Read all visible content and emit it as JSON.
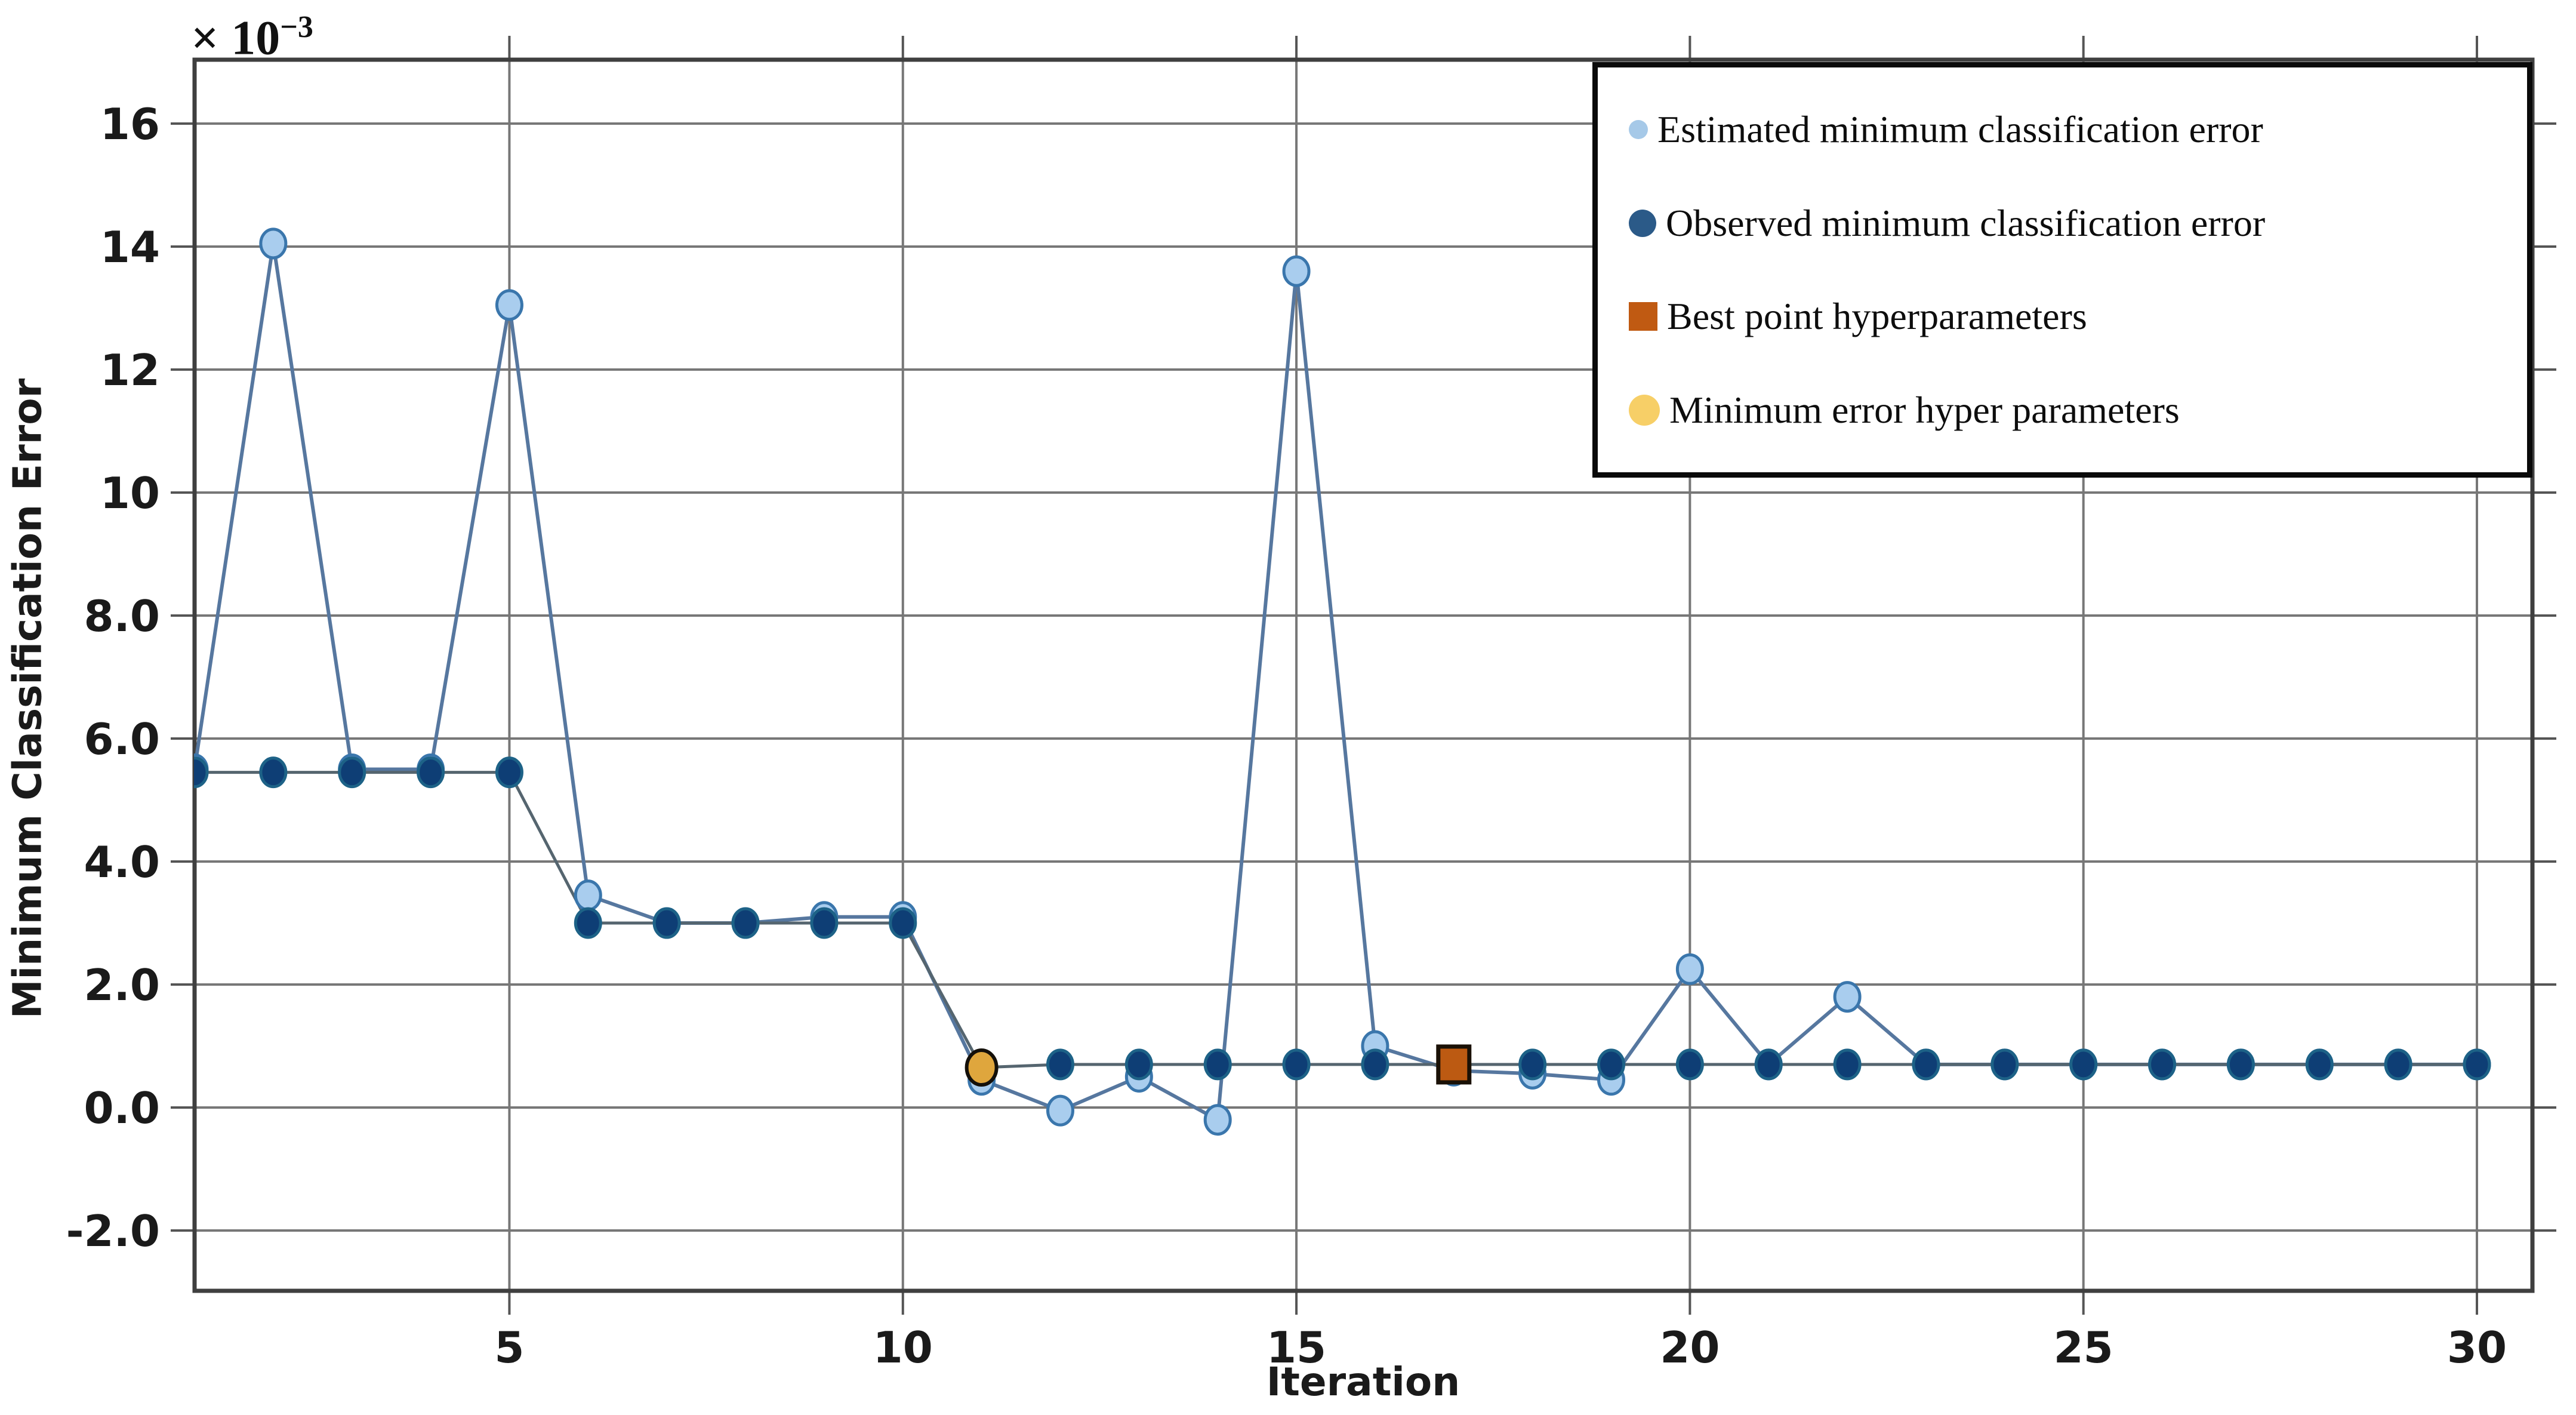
{
  "figure": {
    "background": "#ffffff",
    "frame_color": "#3f3f3f",
    "grid_color": "#777777",
    "tick_color": "#555555"
  },
  "x_axis": {
    "title": "Iteration",
    "tick_labels": [
      "5",
      "10",
      "15",
      "20",
      "25",
      "30"
    ],
    "tick_values": [
      5,
      10,
      15,
      20,
      25,
      30
    ]
  },
  "y_axis": {
    "title": "Minimum Classification Error",
    "multiplier_base": "× 10",
    "multiplier_exponent": "−3",
    "tick_labels": [
      "16",
      "14",
      "12",
      "10",
      "8.0",
      "6.0",
      "4.0",
      "2.0",
      "0.0",
      "-2.0"
    ],
    "tick_values": [
      16,
      14,
      12,
      10,
      8,
      6,
      4,
      2,
      0,
      -2
    ]
  },
  "legend": {
    "items": [
      {
        "label": "Estimated minimum classification error",
        "marker": "circle-small",
        "color": "#A6C9E8"
      },
      {
        "label": "Observed minimum classification error",
        "marker": "circle",
        "color": "#2B5A88"
      },
      {
        "label": "Best point hyperparameters",
        "marker": "square",
        "color": "#C05A12"
      },
      {
        "label": "Minimum error hyper parameters",
        "marker": "circle-large",
        "color": "#F7CF67"
      }
    ]
  },
  "chart_data": {
    "type": "line",
    "title": "",
    "xlabel": "Iteration",
    "ylabel": "Minimum Classification Error",
    "y_unit_multiplier": "1e-3",
    "xlim": [
      1,
      30.7
    ],
    "ylim_e3": [
      -2.98,
      17.04
    ],
    "grid": true,
    "legend_position": "top-right",
    "x": [
      1,
      2,
      3,
      4,
      5,
      6,
      7,
      8,
      9,
      10,
      11,
      12,
      13,
      14,
      15,
      16,
      17,
      18,
      19,
      20,
      21,
      22,
      23,
      24,
      25,
      26,
      27,
      28,
      29,
      30
    ],
    "series": [
      {
        "name": "Estimated minimum classification error",
        "type": "line+markers",
        "line_color": "#56779F",
        "marker_fill": "#A9CDEE",
        "marker_edge": "#3A76AC",
        "values_e3": [
          5.5,
          14.05,
          5.5,
          5.5,
          13.05,
          3.45,
          3.0,
          3.0,
          3.1,
          3.1,
          0.45,
          -0.05,
          0.5,
          -0.2,
          13.6,
          1.0,
          0.6,
          0.55,
          0.45,
          2.25,
          0.7,
          1.8,
          0.7,
          0.7,
          0.7,
          0.7,
          0.7,
          0.7,
          0.7,
          0.7
        ]
      },
      {
        "name": "Observed minimum classification error",
        "type": "line+markers",
        "line_color": "#55656F",
        "marker_fill": "#0E3E75",
        "marker_edge": "#1D6287",
        "values_e3": [
          5.45,
          5.45,
          5.45,
          5.45,
          5.45,
          3.0,
          3.0,
          3.0,
          3.0,
          3.0,
          0.65,
          0.7,
          0.7,
          0.7,
          0.7,
          0.7,
          0.7,
          0.7,
          0.7,
          0.7,
          0.7,
          0.7,
          0.7,
          0.7,
          0.7,
          0.7,
          0.7,
          0.7,
          0.7,
          0.7
        ]
      },
      {
        "name": "Best point hyperparameters",
        "type": "point",
        "marker": "square",
        "fill": "#BC5A12",
        "edge": "#1A1106",
        "point": {
          "x": 17,
          "y_e3": 0.7
        }
      },
      {
        "name": "Minimum error hyper parameters",
        "type": "point",
        "marker": "circle",
        "fill": "#DFA63D",
        "edge": "#14100A",
        "point": {
          "x": 11,
          "y_e3": 0.65
        }
      }
    ]
  }
}
